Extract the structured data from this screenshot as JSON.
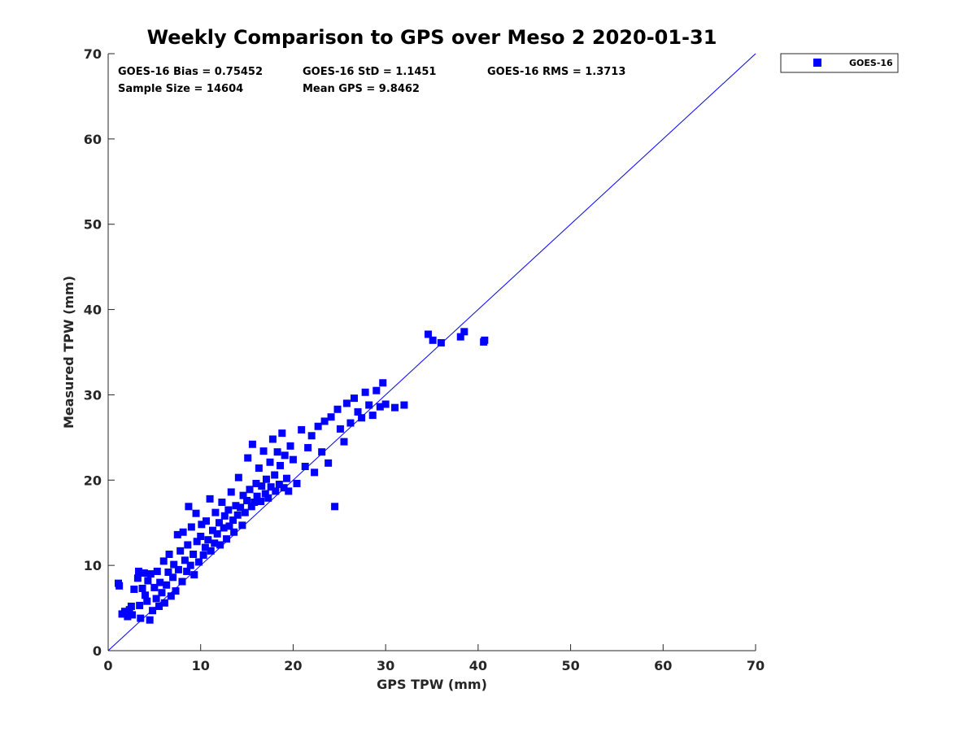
{
  "chart_data": {
    "type": "scatter",
    "title": "Weekly Comparison to GPS over Meso 2 2020-01-31",
    "xlabel": "GPS TPW (mm)",
    "ylabel": "Measured TPW (mm)",
    "xlim": [
      0,
      70
    ],
    "ylim": [
      0,
      70
    ],
    "xticks": [
      "0",
      "10",
      "20",
      "30",
      "40",
      "50",
      "60",
      "70"
    ],
    "yticks": [
      "0",
      "10",
      "20",
      "30",
      "40",
      "50",
      "60",
      "70"
    ],
    "grid": false,
    "legend_position": "outside-top-right",
    "series_color": "#0000ff",
    "reference_line": {
      "name": "1:1 line",
      "x": [
        0,
        70
      ],
      "y": [
        0,
        70
      ],
      "color": "#0000ff"
    },
    "stats": {
      "bias": "GOES-16 Bias = 0.75452",
      "std": "GOES-16 StD = 1.1451",
      "rms": "GOES-16 RMS = 1.3713",
      "sample_size": "Sample Size = 14604",
      "mean_gps": "Mean GPS = 9.8462"
    },
    "series": [
      {
        "name": "GOES-16",
        "points": [
          [
            1.1,
            7.9
          ],
          [
            1.2,
            7.6
          ],
          [
            1.5,
            4.3
          ],
          [
            1.8,
            4.6
          ],
          [
            2.1,
            4.0
          ],
          [
            2.3,
            4.8
          ],
          [
            2.5,
            5.2
          ],
          [
            2.6,
            4.2
          ],
          [
            2.8,
            7.2
          ],
          [
            3.2,
            8.5
          ],
          [
            3.3,
            9.3
          ],
          [
            3.4,
            5.3
          ],
          [
            3.5,
            3.8
          ],
          [
            3.7,
            7.3
          ],
          [
            3.9,
            9.1
          ],
          [
            4.0,
            6.5
          ],
          [
            4.2,
            5.8
          ],
          [
            4.3,
            8.2
          ],
          [
            4.5,
            3.6
          ],
          [
            4.6,
            9.0
          ],
          [
            4.8,
            4.7
          ],
          [
            5.0,
            7.4
          ],
          [
            5.2,
            6.1
          ],
          [
            5.3,
            9.3
          ],
          [
            5.5,
            5.2
          ],
          [
            5.6,
            8.0
          ],
          [
            5.8,
            6.8
          ],
          [
            6.0,
            10.5
          ],
          [
            6.1,
            5.6
          ],
          [
            6.3,
            7.7
          ],
          [
            6.5,
            9.2
          ],
          [
            6.6,
            11.3
          ],
          [
            6.8,
            6.4
          ],
          [
            7.0,
            8.6
          ],
          [
            7.1,
            10.1
          ],
          [
            7.3,
            7.0
          ],
          [
            7.5,
            13.6
          ],
          [
            7.6,
            9.5
          ],
          [
            7.8,
            11.7
          ],
          [
            8.0,
            8.1
          ],
          [
            8.1,
            13.9
          ],
          [
            8.3,
            10.6
          ],
          [
            8.5,
            9.3
          ],
          [
            8.6,
            12.4
          ],
          [
            8.7,
            16.9
          ],
          [
            8.9,
            10.0
          ],
          [
            9.0,
            14.5
          ],
          [
            9.2,
            11.3
          ],
          [
            9.3,
            8.9
          ],
          [
            9.5,
            16.1
          ],
          [
            9.6,
            12.8
          ],
          [
            9.8,
            10.4
          ],
          [
            10.0,
            13.4
          ],
          [
            10.1,
            14.8
          ],
          [
            10.3,
            11.2
          ],
          [
            10.5,
            12.1
          ],
          [
            10.6,
            15.2
          ],
          [
            10.8,
            13.0
          ],
          [
            11.0,
            17.8
          ],
          [
            11.1,
            11.7
          ],
          [
            11.3,
            14.1
          ],
          [
            11.5,
            12.6
          ],
          [
            11.6,
            16.2
          ],
          [
            11.8,
            13.7
          ],
          [
            12.0,
            15.0
          ],
          [
            12.1,
            12.4
          ],
          [
            12.3,
            17.4
          ],
          [
            12.5,
            14.4
          ],
          [
            12.6,
            15.8
          ],
          [
            12.8,
            13.1
          ],
          [
            13.0,
            16.5
          ],
          [
            13.1,
            14.6
          ],
          [
            13.3,
            18.6
          ],
          [
            13.5,
            15.3
          ],
          [
            13.6,
            13.9
          ],
          [
            13.8,
            17.0
          ],
          [
            14.0,
            15.9
          ],
          [
            14.1,
            20.3
          ],
          [
            14.3,
            16.8
          ],
          [
            14.5,
            14.7
          ],
          [
            14.6,
            18.2
          ],
          [
            14.8,
            16.2
          ],
          [
            15.0,
            17.6
          ],
          [
            15.1,
            22.6
          ],
          [
            15.3,
            18.9
          ],
          [
            15.5,
            16.9
          ],
          [
            15.6,
            24.2
          ],
          [
            15.8,
            17.4
          ],
          [
            16.0,
            19.6
          ],
          [
            16.1,
            18.1
          ],
          [
            16.3,
            21.4
          ],
          [
            16.5,
            17.5
          ],
          [
            16.6,
            19.3
          ],
          [
            16.8,
            23.4
          ],
          [
            17.0,
            18.4
          ],
          [
            17.1,
            20.1
          ],
          [
            17.3,
            17.9
          ],
          [
            17.5,
            22.1
          ],
          [
            17.6,
            19.2
          ],
          [
            17.8,
            24.8
          ],
          [
            18.0,
            20.6
          ],
          [
            18.1,
            18.7
          ],
          [
            18.3,
            23.3
          ],
          [
            18.5,
            19.5
          ],
          [
            18.6,
            21.7
          ],
          [
            18.8,
            25.5
          ],
          [
            19.0,
            19.1
          ],
          [
            19.1,
            22.9
          ],
          [
            19.3,
            20.2
          ],
          [
            19.5,
            18.7
          ],
          [
            19.7,
            24.0
          ],
          [
            20.0,
            22.4
          ],
          [
            20.4,
            19.6
          ],
          [
            20.9,
            25.9
          ],
          [
            21.3,
            21.6
          ],
          [
            21.6,
            23.8
          ],
          [
            22.0,
            25.2
          ],
          [
            22.3,
            20.9
          ],
          [
            22.7,
            26.3
          ],
          [
            23.1,
            23.3
          ],
          [
            23.4,
            26.9
          ],
          [
            23.8,
            22.0
          ],
          [
            24.1,
            27.4
          ],
          [
            24.5,
            16.9
          ],
          [
            24.8,
            28.3
          ],
          [
            25.1,
            26.0
          ],
          [
            25.5,
            24.5
          ],
          [
            25.8,
            29.0
          ],
          [
            26.2,
            26.7
          ],
          [
            26.6,
            29.6
          ],
          [
            27.0,
            28.0
          ],
          [
            27.4,
            27.3
          ],
          [
            27.8,
            30.3
          ],
          [
            28.2,
            28.8
          ],
          [
            28.6,
            27.6
          ],
          [
            29.0,
            30.5
          ],
          [
            29.4,
            28.6
          ],
          [
            29.7,
            31.4
          ],
          [
            30.0,
            28.9
          ],
          [
            31.0,
            28.5
          ],
          [
            32.0,
            28.8
          ],
          [
            34.6,
            37.1
          ],
          [
            35.1,
            36.4
          ],
          [
            36.0,
            36.1
          ],
          [
            38.1,
            36.8
          ],
          [
            38.5,
            37.4
          ],
          [
            40.6,
            36.2
          ],
          [
            40.7,
            36.4
          ]
        ]
      }
    ]
  }
}
